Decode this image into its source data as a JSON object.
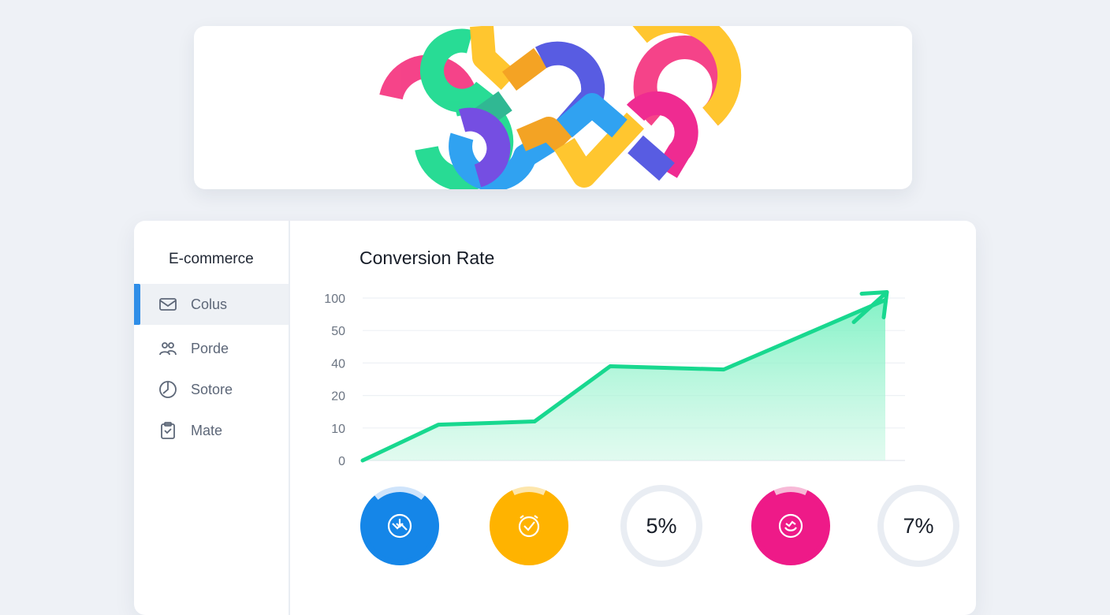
{
  "banner": {
    "logo_icon": "colorful-interlocking-links-logo",
    "colors": [
      "#16d98c",
      "#f5347f",
      "#ffc21e",
      "#1f9bf0",
      "#4a4fe0",
      "#f39c12",
      "#8a3ff0"
    ]
  },
  "sidebar": {
    "title": "E-commerce",
    "accent": "#2f8ee8",
    "items": [
      {
        "label": "Colus",
        "icon": "mail-icon",
        "active": true
      },
      {
        "label": "Porde",
        "icon": "users-icon",
        "active": false
      },
      {
        "label": "Sotore",
        "icon": "pie-chart-icon",
        "active": false
      },
      {
        "label": "Mate",
        "icon": "clipboard-icon",
        "active": false
      }
    ]
  },
  "chart_data": {
    "type": "area",
    "title": "Conversion Rate",
    "xlabel": "",
    "ylabel": "",
    "y_ticks": [
      "100",
      "50",
      "40",
      "20",
      "10",
      "0"
    ],
    "x": [
      0,
      1,
      2,
      3,
      4,
      5
    ],
    "values": [
      0,
      11,
      12,
      38,
      36,
      97
    ],
    "grid": true,
    "trend_arrow": true,
    "line_color": "#18d88f",
    "fill_color": "#7ff0c4"
  },
  "kpis": [
    {
      "icon": "chart-down-icon",
      "text": "",
      "fraction": 0.78,
      "color": "#1586e8",
      "track": "#cfe4fb",
      "filled": true
    },
    {
      "icon": "clock-check-icon",
      "text": "",
      "fraction": 0.86,
      "color": "#ffb300",
      "track": "#fde6ac",
      "filled": true
    },
    {
      "icon": "",
      "text": "5%",
      "fraction": 0.0,
      "color": "#dfe4ec",
      "track": "#e9edf3",
      "filled": false
    },
    {
      "icon": "smile-chart-icon",
      "text": "",
      "fraction": 0.86,
      "color": "#ee1a88",
      "track": "#f7b9d7",
      "filled": true
    },
    {
      "icon": "",
      "text": "7%",
      "fraction": 0.0,
      "color": "#dfe4ec",
      "track": "#e9edf3",
      "filled": false
    }
  ]
}
